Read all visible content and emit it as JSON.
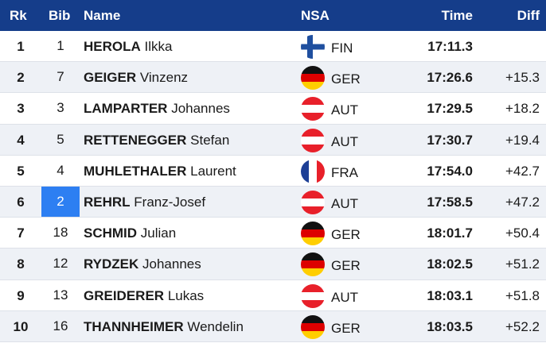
{
  "header": {
    "rank": "Rk",
    "bib": "Bib",
    "name": "Name",
    "nsa": "NSA",
    "time": "Time",
    "diff": "Diff"
  },
  "rows": [
    {
      "rank": "1",
      "bib": "1",
      "last": "HEROLA",
      "first": "Ilkka",
      "nsa": "FIN",
      "flag": "finland-flag-icon",
      "time": "17:11.3",
      "diff": ""
    },
    {
      "rank": "2",
      "bib": "7",
      "last": "GEIGER",
      "first": "Vinzenz",
      "nsa": "GER",
      "flag": "germany-flag-icon",
      "time": "17:26.6",
      "diff": "+15.3"
    },
    {
      "rank": "3",
      "bib": "3",
      "last": "LAMPARTER",
      "first": "Johannes",
      "nsa": "AUT",
      "flag": "austria-flag-icon",
      "time": "17:29.5",
      "diff": "+18.2"
    },
    {
      "rank": "4",
      "bib": "5",
      "last": "RETTENEGGER",
      "first": "Stefan",
      "nsa": "AUT",
      "flag": "austria-flag-icon",
      "time": "17:30.7",
      "diff": "+19.4"
    },
    {
      "rank": "5",
      "bib": "4",
      "last": "MUHLETHALER",
      "first": "Laurent",
      "nsa": "FRA",
      "flag": "france-flag-icon",
      "time": "17:54.0",
      "diff": "+42.7"
    },
    {
      "rank": "6",
      "bib": "2",
      "last": "REHRL",
      "first": "Franz-Josef",
      "nsa": "AUT",
      "flag": "austria-flag-icon",
      "time": "17:58.5",
      "diff": "+47.2",
      "highlight_bib": true
    },
    {
      "rank": "7",
      "bib": "18",
      "last": "SCHMID",
      "first": "Julian",
      "nsa": "GER",
      "flag": "germany-flag-icon",
      "time": "18:01.7",
      "diff": "+50.4"
    },
    {
      "rank": "8",
      "bib": "12",
      "last": "RYDZEK",
      "first": "Johannes",
      "nsa": "GER",
      "flag": "germany-flag-icon",
      "time": "18:02.5",
      "diff": "+51.2"
    },
    {
      "rank": "9",
      "bib": "13",
      "last": "GREIDERER",
      "first": "Lukas",
      "nsa": "AUT",
      "flag": "austria-flag-icon",
      "time": "18:03.1",
      "diff": "+51.8"
    },
    {
      "rank": "10",
      "bib": "16",
      "last": "THANNHEIMER",
      "first": "Wendelin",
      "nsa": "GER",
      "flag": "germany-flag-icon",
      "time": "18:03.5",
      "diff": "+52.2"
    }
  ],
  "colors": {
    "header_bg": "#153d8a",
    "bib_highlight": "#2d7ff2",
    "row_alt": "#eef1f6"
  }
}
